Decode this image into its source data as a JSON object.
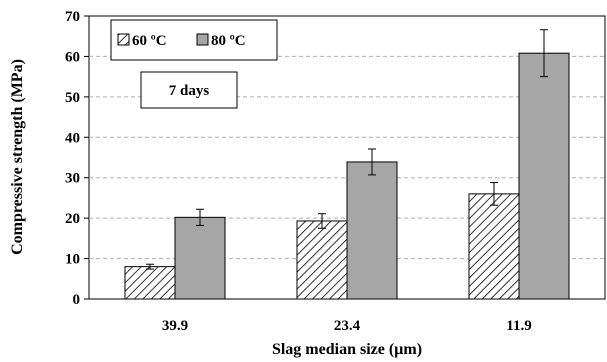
{
  "chart_data": {
    "type": "bar",
    "xlabel": "Slag median size (µm)",
    "ylabel": "Compressive strength (MPa)",
    "ylim": [
      0,
      70
    ],
    "yticks": [
      0,
      10,
      20,
      30,
      40,
      50,
      60,
      70
    ],
    "categories": [
      "39.9",
      "23.4",
      "11.9"
    ],
    "series": [
      {
        "name": "60 ºC",
        "values": [
          8.0,
          19.3,
          26.0
        ],
        "errors": [
          0.6,
          1.8,
          2.8
        ],
        "color": "#ffffff",
        "pattern": "diagonal-hatch"
      },
      {
        "name": "80 ºC",
        "values": [
          20.2,
          33.9,
          60.8
        ],
        "errors": [
          2.0,
          3.2,
          5.8
        ],
        "color": "#a6a6a6",
        "pattern": "solid"
      }
    ],
    "annotation": "7 days",
    "grid": "horizontal-dashed",
    "legend_position": "top-left"
  }
}
